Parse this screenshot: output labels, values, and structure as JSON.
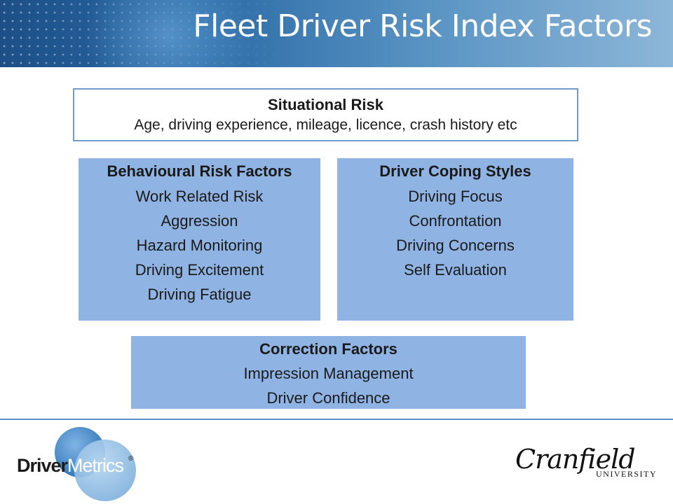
{
  "title": "Fleet Driver Risk Index Factors",
  "situational": {
    "heading": "Situational Risk",
    "description": "Age, driving experience, mileage, licence, crash history etc"
  },
  "behavioural": {
    "heading": "Behavioural Risk Factors",
    "items": [
      "Work Related Risk",
      "Aggression",
      "Hazard Monitoring",
      "Driving Excitement",
      "Driving Fatigue"
    ]
  },
  "coping": {
    "heading": "Driver Coping Styles",
    "items": [
      "Driving Focus",
      "Confrontation",
      "Driving Concerns",
      "Self Evaluation"
    ]
  },
  "correction": {
    "heading": "Correction Factors",
    "items": [
      "Impression Management",
      "Driver Confidence"
    ]
  },
  "logos": {
    "drivermetrics_part1": "Driver",
    "drivermetrics_part2": "Metrics",
    "drivermetrics_mark": "®",
    "cranfield_name": "Cranfield",
    "cranfield_sub": "UNIVERSITY"
  },
  "colors": {
    "box_fill": "#8fb4e3",
    "box_border": "#6f9bcb",
    "header_dark": "#1d4f86",
    "header_light": "#8db6d8"
  }
}
